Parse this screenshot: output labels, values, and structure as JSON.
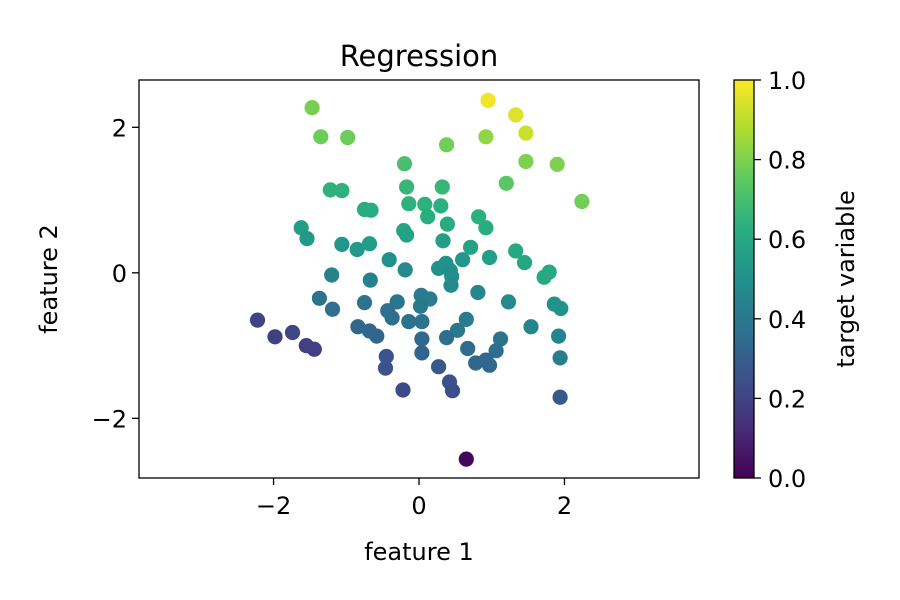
{
  "chart_data": {
    "type": "scatter",
    "title": "Regression",
    "xlabel": "feature 1",
    "ylabel": "feature 2",
    "xlim": [
      -3.85,
      3.85
    ],
    "ylim": [
      -2.82,
      2.65
    ],
    "x_ticks": [
      -2,
      0,
      2
    ],
    "x_tick_labels": [
      "−2",
      "0",
      "2"
    ],
    "y_ticks": [
      -2,
      0,
      2
    ],
    "y_tick_labels": [
      "−2",
      "0",
      "2"
    ],
    "grid": false,
    "colormap": "viridis",
    "colorbar": {
      "label": "target variable",
      "range": [
        0,
        1
      ],
      "ticks": [
        0.0,
        0.2,
        0.4,
        0.6,
        0.8,
        1.0
      ],
      "tick_labels": [
        "0.0",
        "0.2",
        "0.4",
        "0.6",
        "0.8",
        "1.0"
      ]
    },
    "points": [
      {
        "x": 0.95,
        "y": 2.37,
        "v": 0.98
      },
      {
        "x": 1.33,
        "y": 2.17,
        "v": 0.95
      },
      {
        "x": 1.47,
        "y": 1.92,
        "v": 0.92
      },
      {
        "x": -1.47,
        "y": 2.27,
        "v": 0.79
      },
      {
        "x": -1.35,
        "y": 1.87,
        "v": 0.77
      },
      {
        "x": -0.98,
        "y": 1.86,
        "v": 0.77
      },
      {
        "x": 0.38,
        "y": 1.76,
        "v": 0.78
      },
      {
        "x": 0.92,
        "y": 1.87,
        "v": 0.83
      },
      {
        "x": 1.47,
        "y": 1.53,
        "v": 0.8
      },
      {
        "x": 1.9,
        "y": 1.49,
        "v": 0.8
      },
      {
        "x": 2.24,
        "y": 0.98,
        "v": 0.78
      },
      {
        "x": 1.2,
        "y": 1.23,
        "v": 0.74
      },
      {
        "x": -0.2,
        "y": 1.5,
        "v": 0.7
      },
      {
        "x": -1.22,
        "y": 1.14,
        "v": 0.64
      },
      {
        "x": -1.06,
        "y": 1.13,
        "v": 0.64
      },
      {
        "x": -0.17,
        "y": 1.18,
        "v": 0.66
      },
      {
        "x": 0.32,
        "y": 1.18,
        "v": 0.66
      },
      {
        "x": -0.75,
        "y": 0.87,
        "v": 0.62
      },
      {
        "x": -0.66,
        "y": 0.86,
        "v": 0.62
      },
      {
        "x": -0.14,
        "y": 0.95,
        "v": 0.64
      },
      {
        "x": 0.08,
        "y": 0.94,
        "v": 0.64
      },
      {
        "x": 0.3,
        "y": 0.92,
        "v": 0.63
      },
      {
        "x": 0.12,
        "y": 0.77,
        "v": 0.62
      },
      {
        "x": 0.39,
        "y": 0.67,
        "v": 0.61
      },
      {
        "x": 0.82,
        "y": 0.77,
        "v": 0.63
      },
      {
        "x": 0.92,
        "y": 0.62,
        "v": 0.62
      },
      {
        "x": -1.62,
        "y": 0.62,
        "v": 0.55
      },
      {
        "x": -1.54,
        "y": 0.47,
        "v": 0.53
      },
      {
        "x": -1.06,
        "y": 0.39,
        "v": 0.52
      },
      {
        "x": -0.85,
        "y": 0.32,
        "v": 0.54
      },
      {
        "x": -0.68,
        "y": 0.4,
        "v": 0.55
      },
      {
        "x": -0.21,
        "y": 0.58,
        "v": 0.58
      },
      {
        "x": -0.17,
        "y": 0.52,
        "v": 0.57
      },
      {
        "x": 0.33,
        "y": 0.44,
        "v": 0.56
      },
      {
        "x": 0.71,
        "y": 0.35,
        "v": 0.57
      },
      {
        "x": 1.33,
        "y": 0.3,
        "v": 0.6
      },
      {
        "x": 1.45,
        "y": 0.14,
        "v": 0.59
      },
      {
        "x": 0.97,
        "y": 0.21,
        "v": 0.56
      },
      {
        "x": 1.79,
        "y": 0.01,
        "v": 0.6
      },
      {
        "x": 1.72,
        "y": -0.06,
        "v": 0.6
      },
      {
        "x": -0.41,
        "y": 0.18,
        "v": 0.5
      },
      {
        "x": -0.19,
        "y": 0.04,
        "v": 0.47
      },
      {
        "x": 0.27,
        "y": 0.06,
        "v": 0.5
      },
      {
        "x": 0.37,
        "y": 0.13,
        "v": 0.51
      },
      {
        "x": 0.43,
        "y": 0.03,
        "v": 0.49
      },
      {
        "x": 0.45,
        "y": -0.05,
        "v": 0.49
      },
      {
        "x": -1.2,
        "y": -0.03,
        "v": 0.44
      },
      {
        "x": -0.67,
        "y": -0.1,
        "v": 0.44
      },
      {
        "x": 0.6,
        "y": 0.18,
        "v": 0.52
      },
      {
        "x": 0.44,
        "y": -0.17,
        "v": 0.47
      },
      {
        "x": 0.81,
        "y": -0.27,
        "v": 0.46
      },
      {
        "x": 1.23,
        "y": -0.4,
        "v": 0.47
      },
      {
        "x": 1.86,
        "y": -0.43,
        "v": 0.51
      },
      {
        "x": 1.95,
        "y": -0.49,
        "v": 0.51
      },
      {
        "x": -1.37,
        "y": -0.35,
        "v": 0.38
      },
      {
        "x": -1.19,
        "y": -0.5,
        "v": 0.37
      },
      {
        "x": -0.75,
        "y": -0.41,
        "v": 0.38
      },
      {
        "x": -0.3,
        "y": -0.4,
        "v": 0.39
      },
      {
        "x": -0.43,
        "y": -0.52,
        "v": 0.37
      },
      {
        "x": -0.37,
        "y": -0.62,
        "v": 0.36
      },
      {
        "x": 0.03,
        "y": -0.31,
        "v": 0.41
      },
      {
        "x": 0.15,
        "y": -0.36,
        "v": 0.41
      },
      {
        "x": 0.02,
        "y": -0.46,
        "v": 0.4
      },
      {
        "x": -0.14,
        "y": -0.67,
        "v": 0.37
      },
      {
        "x": 0.04,
        "y": -0.67,
        "v": 0.38
      },
      {
        "x": 0.65,
        "y": -0.64,
        "v": 0.41
      },
      {
        "x": 0.53,
        "y": -0.79,
        "v": 0.4
      },
      {
        "x": 1.54,
        "y": -0.74,
        "v": 0.45
      },
      {
        "x": 1.92,
        "y": -0.87,
        "v": 0.45
      },
      {
        "x": 1.94,
        "y": -1.17,
        "v": 0.42
      },
      {
        "x": -0.84,
        "y": -0.74,
        "v": 0.33
      },
      {
        "x": -0.68,
        "y": -0.8,
        "v": 0.33
      },
      {
        "x": -0.58,
        "y": -0.87,
        "v": 0.32
      },
      {
        "x": 0.04,
        "y": -0.91,
        "v": 0.34
      },
      {
        "x": 0.38,
        "y": -0.89,
        "v": 0.36
      },
      {
        "x": 1.12,
        "y": -0.91,
        "v": 0.38
      },
      {
        "x": 0.67,
        "y": -1.04,
        "v": 0.35
      },
      {
        "x": 1.06,
        "y": -1.07,
        "v": 0.36
      },
      {
        "x": 0.04,
        "y": -1.1,
        "v": 0.32
      },
      {
        "x": 0.78,
        "y": -1.24,
        "v": 0.33
      },
      {
        "x": 0.92,
        "y": -1.2,
        "v": 0.33
      },
      {
        "x": 0.97,
        "y": -1.27,
        "v": 0.33
      },
      {
        "x": -2.22,
        "y": -0.65,
        "v": 0.2
      },
      {
        "x": -1.74,
        "y": -0.82,
        "v": 0.21
      },
      {
        "x": -1.98,
        "y": -0.88,
        "v": 0.19
      },
      {
        "x": -1.55,
        "y": -1.0,
        "v": 0.19
      },
      {
        "x": -1.44,
        "y": -1.05,
        "v": 0.19
      },
      {
        "x": -0.45,
        "y": -1.15,
        "v": 0.26
      },
      {
        "x": -0.46,
        "y": -1.31,
        "v": 0.25
      },
      {
        "x": 0.27,
        "y": -1.29,
        "v": 0.28
      },
      {
        "x": 0.42,
        "y": -1.5,
        "v": 0.25
      },
      {
        "x": 0.46,
        "y": -1.62,
        "v": 0.24
      },
      {
        "x": -0.22,
        "y": -1.61,
        "v": 0.22
      },
      {
        "x": 1.94,
        "y": -1.71,
        "v": 0.28
      },
      {
        "x": 0.65,
        "y": -2.56,
        "v": 0.02
      }
    ]
  }
}
